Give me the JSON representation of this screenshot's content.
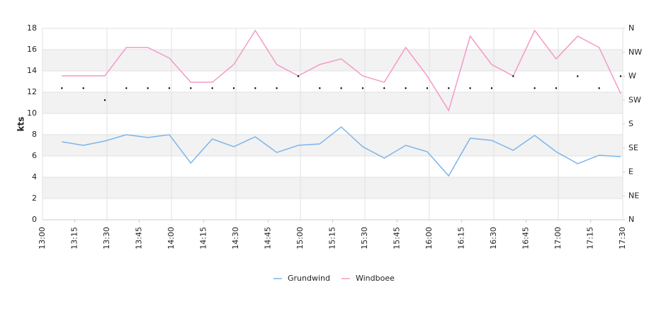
{
  "chart_data": {
    "type": "line",
    "y_label": "kts",
    "x": [
      "13:09",
      "13:19",
      "13:29",
      "13:39",
      "13:49",
      "13:59",
      "14:09",
      "14:19",
      "14:29",
      "14:39",
      "14:49",
      "14:59",
      "15:09",
      "15:19",
      "15:29",
      "15:39",
      "15:49",
      "15:59",
      "16:09",
      "16:19",
      "16:29",
      "16:39",
      "16:49",
      "16:59",
      "17:09",
      "17:19",
      "17:29"
    ],
    "xlim": [
      "13:00",
      "17:30"
    ],
    "xticks": [
      "13:00",
      "13:15",
      "13:30",
      "13:45",
      "14:00",
      "14:15",
      "14:30",
      "14:45",
      "15:00",
      "15:15",
      "15:30",
      "15:45",
      "16:00",
      "16:15",
      "16:30",
      "16:45",
      "17:00",
      "17:15",
      "17:30"
    ],
    "ylim": [
      0,
      18
    ],
    "yticks": [
      0,
      2,
      4,
      6,
      8,
      10,
      12,
      14,
      16,
      18
    ],
    "y2lim": [
      0,
      360
    ],
    "y2ticks": [
      {
        "value": 0,
        "label": "N"
      },
      {
        "value": 45,
        "label": "NE"
      },
      {
        "value": 90,
        "label": "E"
      },
      {
        "value": 135,
        "label": "SE"
      },
      {
        "value": 180,
        "label": "S"
      },
      {
        "value": 225,
        "label": "SW"
      },
      {
        "value": 270,
        "label": "W"
      },
      {
        "value": 315,
        "label": "NW"
      },
      {
        "value": 360,
        "label": "N"
      }
    ],
    "grid": true,
    "legend": "bottom",
    "series": [
      {
        "name": "Grundwind",
        "color": "#7cb5ec",
        "values": [
          7.33,
          7.0,
          7.4,
          8.0,
          7.73,
          8.0,
          5.33,
          7.6,
          6.87,
          7.8,
          6.33,
          7.0,
          7.13,
          8.73,
          6.87,
          5.8,
          7.0,
          6.4,
          4.13,
          7.67,
          7.47,
          6.53,
          7.93,
          6.4,
          5.27,
          6.07,
          5.93
        ]
      },
      {
        "name": "Windboee",
        "color": "#f49ac8",
        "values": [
          13.53,
          13.53,
          13.53,
          16.2,
          16.2,
          15.2,
          12.93,
          12.93,
          14.6,
          17.8,
          14.6,
          13.53,
          14.6,
          15.13,
          13.53,
          12.93,
          16.2,
          13.53,
          10.27,
          17.27,
          14.6,
          13.53,
          17.8,
          15.13,
          17.27,
          16.2,
          11.87
        ]
      }
    ],
    "direction": {
      "axis": "y2",
      "color": "#000000",
      "values": [
        247.5,
        247.5,
        225,
        247.5,
        247.5,
        247.5,
        247.5,
        247.5,
        247.5,
        247.5,
        247.5,
        270,
        247.5,
        247.5,
        247.5,
        247.5,
        247.5,
        247.5,
        247.5,
        247.5,
        247.5,
        270,
        247.5,
        247.5,
        270,
        247.5,
        270
      ]
    }
  }
}
